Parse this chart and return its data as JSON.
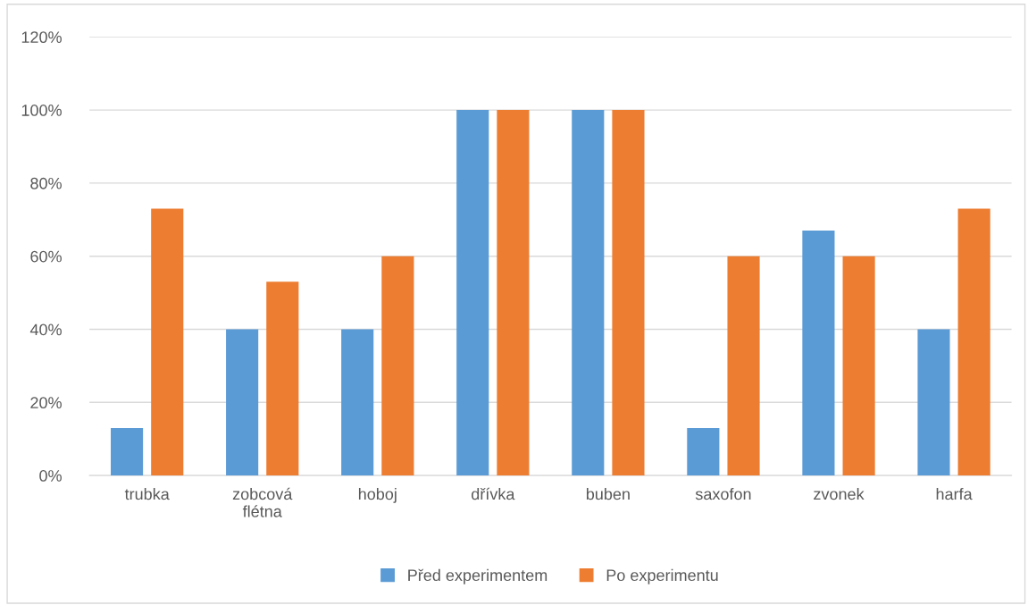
{
  "chart_data": {
    "type": "bar",
    "categories": [
      "trubka",
      "zobcová flétna",
      "hoboj",
      "dřívka",
      "buben",
      "saxofon",
      "zvonek",
      "harfa"
    ],
    "series": [
      {
        "name": "Před experimentem",
        "color": "#5b9bd5",
        "values": [
          0.13,
          0.4,
          0.4,
          1.0,
          1.0,
          0.13,
          0.67,
          0.4
        ]
      },
      {
        "name": "Po experimentu",
        "color": "#ed7d31",
        "values": [
          0.73,
          0.53,
          0.6,
          1.0,
          1.0,
          0.6,
          0.6,
          0.73
        ]
      }
    ],
    "ylim": [
      0,
      1.2
    ],
    "yticks": [
      {
        "value": 0,
        "label": "0%"
      },
      {
        "value": 0.2,
        "label": "20%"
      },
      {
        "value": 0.4,
        "label": "40%"
      },
      {
        "value": 0.6,
        "label": "60%"
      },
      {
        "value": 0.8,
        "label": "80%"
      },
      {
        "value": 1.0,
        "label": "100%"
      },
      {
        "value": 1.2,
        "label": "120%"
      }
    ],
    "grid": "y",
    "legend": "bottom"
  }
}
